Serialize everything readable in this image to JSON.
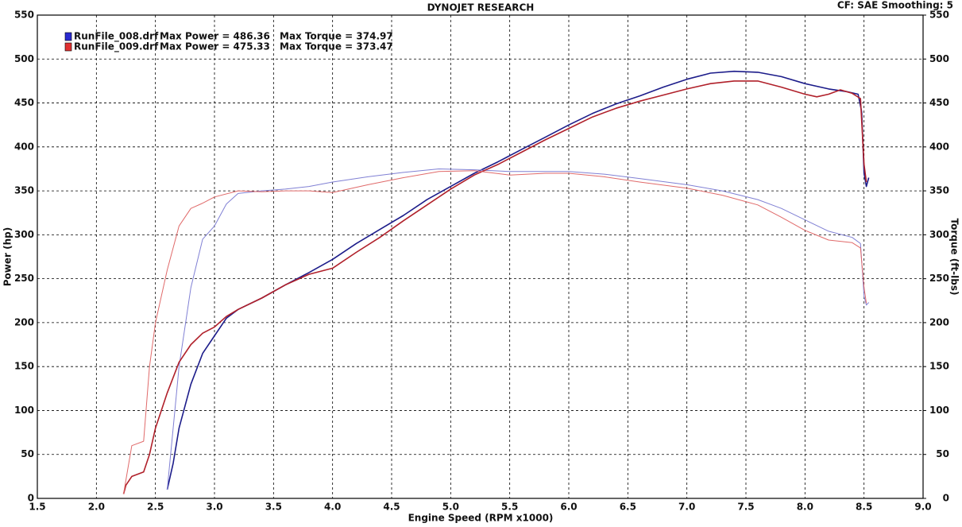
{
  "chart_data": {
    "type": "line",
    "title": "DYNOJET RESEARCH",
    "corner_note": "CF: SAE  Smoothing: 5",
    "x_label": "Engine Speed (RPM x1000)",
    "y_label": "Power (hp)",
    "y2_label": "Torque (ft-lbs)",
    "grid": true,
    "xlim": [
      1.5,
      9.0
    ],
    "xticks": [
      {
        "value": 1.5,
        "label": "1.5"
      },
      {
        "value": 2.0,
        "label": "2.0"
      },
      {
        "value": 2.5,
        "label": "2.5"
      },
      {
        "value": 3.0,
        "label": "3.0"
      },
      {
        "value": 3.5,
        "label": "3.5"
      },
      {
        "value": 4.0,
        "label": "4.0"
      },
      {
        "value": 4.5,
        "label": "4.5"
      },
      {
        "value": 5.0,
        "label": "5.0"
      },
      {
        "value": 5.5,
        "label": "5.5"
      },
      {
        "value": 6.0,
        "label": "6.0"
      },
      {
        "value": 6.5,
        "label": "6.5"
      },
      {
        "value": 7.0,
        "label": "7.0"
      },
      {
        "value": 7.5,
        "label": "7.5"
      },
      {
        "value": 8.0,
        "label": "8.0"
      },
      {
        "value": 8.5,
        "label": "8.5"
      },
      {
        "value": 9.0,
        "label": "9.0"
      }
    ],
    "ylim": [
      0,
      550
    ],
    "yticks": [
      0,
      50,
      100,
      150,
      200,
      250,
      300,
      350,
      400,
      450,
      500,
      550
    ],
    "y2lim": [
      0,
      550
    ],
    "y2ticks": [
      0,
      50,
      100,
      150,
      200,
      250,
      300,
      350,
      400,
      450,
      500,
      550
    ],
    "legend": [
      {
        "name": "RunFile_008.drf",
        "color": "#2a2ad0",
        "power": "Max Power = 486.36",
        "torque": "Max Torque = 374.97"
      },
      {
        "name": "RunFile_009.drf",
        "color": "#e03030",
        "power": "Max Power = 475.33",
        "torque": "Max Torque = 373.47"
      }
    ],
    "series": [
      {
        "color": "#1c1c8a",
        "width": 1.6,
        "x": [
          2.6,
          2.65,
          2.7,
          2.8,
          2.9,
          3.0,
          3.1,
          3.2,
          3.4,
          3.6,
          3.8,
          4.0,
          4.2,
          4.4,
          4.6,
          4.8,
          5.0,
          5.2,
          5.4,
          5.6,
          5.8,
          6.0,
          6.2,
          6.4,
          6.6,
          6.8,
          7.0,
          7.2,
          7.4,
          7.6,
          7.8,
          8.0,
          8.2,
          8.35,
          8.45,
          8.48,
          8.5,
          8.52,
          8.54
        ],
        "values": [
          10,
          40,
          80,
          130,
          165,
          185,
          205,
          215,
          228,
          243,
          257,
          272,
          290,
          306,
          322,
          340,
          355,
          370,
          383,
          397,
          411,
          425,
          438,
          449,
          458,
          468,
          477,
          484,
          486,
          485,
          480,
          472,
          466,
          463,
          460,
          440,
          370,
          355,
          365
        ]
      },
      {
        "color": "#8080d4",
        "width": 1,
        "x": [
          2.6,
          2.65,
          2.7,
          2.8,
          2.9,
          3.0,
          3.1,
          3.2,
          3.4,
          3.6,
          3.8,
          4.0,
          4.3,
          4.6,
          4.9,
          5.2,
          5.5,
          5.8,
          6.0,
          6.3,
          6.6,
          7.0,
          7.3,
          7.6,
          7.8,
          8.0,
          8.2,
          8.4,
          8.47,
          8.5,
          8.52,
          8.54
        ],
        "values": [
          10,
          80,
          150,
          240,
          295,
          310,
          335,
          347,
          350,
          352,
          355,
          360,
          366,
          371,
          375,
          374,
          372,
          372,
          372,
          369,
          364,
          357,
          350,
          340,
          330,
          317,
          304,
          297,
          290,
          230,
          220,
          223
        ]
      },
      {
        "color": "#b0202a",
        "width": 1.6,
        "x": [
          2.23,
          2.25,
          2.3,
          2.4,
          2.45,
          2.5,
          2.6,
          2.7,
          2.8,
          2.9,
          3.0,
          3.1,
          3.2,
          3.4,
          3.6,
          3.8,
          4.0,
          4.2,
          4.4,
          4.6,
          4.8,
          5.0,
          5.2,
          5.4,
          5.6,
          5.8,
          6.0,
          6.2,
          6.4,
          6.6,
          6.8,
          7.0,
          7.2,
          7.4,
          7.6,
          7.8,
          8.0,
          8.1,
          8.2,
          8.3,
          8.4,
          8.47,
          8.5,
          8.52
        ],
        "values": [
          5,
          15,
          25,
          30,
          50,
          80,
          120,
          155,
          175,
          188,
          195,
          207,
          215,
          228,
          243,
          255,
          262,
          280,
          297,
          316,
          334,
          352,
          368,
          380,
          394,
          408,
          421,
          434,
          444,
          452,
          459,
          466,
          472,
          475,
          475,
          468,
          460,
          457,
          460,
          465,
          461,
          455,
          380,
          360
        ]
      },
      {
        "color": "#e06a6a",
        "width": 1,
        "x": [
          2.23,
          2.3,
          2.4,
          2.45,
          2.5,
          2.6,
          2.7,
          2.8,
          2.9,
          3.0,
          3.2,
          3.4,
          3.6,
          3.8,
          4.0,
          4.3,
          4.6,
          4.9,
          5.2,
          5.5,
          5.8,
          6.0,
          6.3,
          6.6,
          7.0,
          7.3,
          7.6,
          7.8,
          8.0,
          8.2,
          8.4,
          8.47,
          8.5,
          8.52
        ],
        "values": [
          5,
          60,
          65,
          150,
          200,
          260,
          310,
          330,
          336,
          343,
          350,
          349,
          350,
          350,
          348,
          357,
          365,
          372,
          373,
          368,
          370,
          370,
          366,
          360,
          353,
          345,
          334,
          320,
          305,
          294,
          291,
          285,
          240,
          222
        ],
        "axis": "y2"
      }
    ]
  }
}
